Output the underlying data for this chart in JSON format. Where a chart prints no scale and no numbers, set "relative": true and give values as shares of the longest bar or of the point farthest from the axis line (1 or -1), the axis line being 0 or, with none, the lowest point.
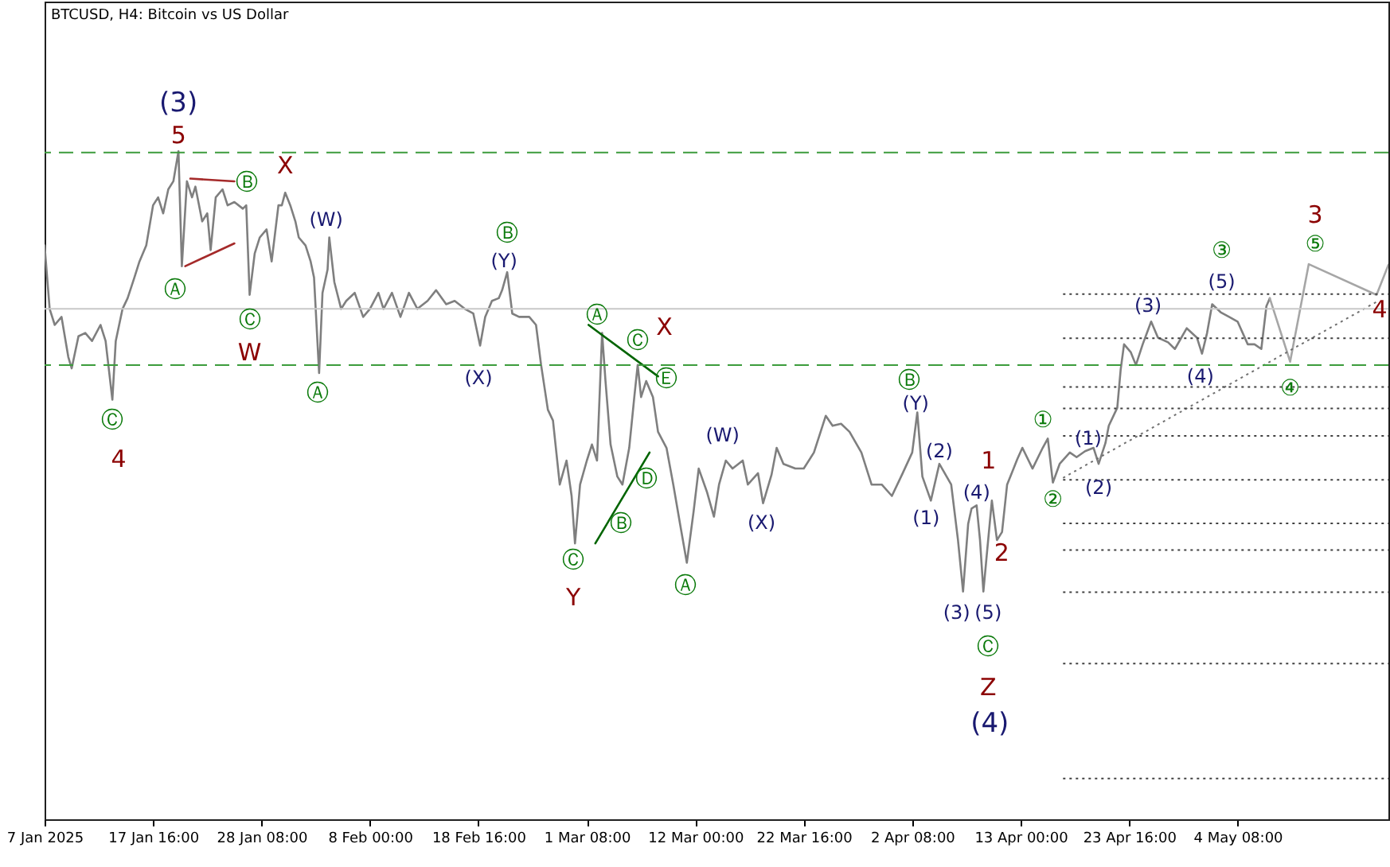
{
  "chart_data": {
    "type": "line",
    "title": "BTCUSD, H4: Bitcoin vs US Dollar",
    "relative": true,
    "xlim": [
      "2025-01-07T00:00",
      "2025-05-19T04:00"
    ],
    "xticks": [
      {
        "value": "2025-01-07T00:00",
        "label": "7 Jan 2025"
      },
      {
        "value": "2025-01-17T16:00",
        "label": "17 Jan 16:00"
      },
      {
        "value": "2025-01-28T08:00",
        "label": "28 Jan 08:00"
      },
      {
        "value": "2025-02-08T00:00",
        "label": "8 Feb 00:00"
      },
      {
        "value": "2025-02-18T16:00",
        "label": "18 Feb 16:00"
      },
      {
        "value": "2025-03-01T08:00",
        "label": "1 Mar 08:00"
      },
      {
        "value": "2025-03-12T00:00",
        "label": "12 Mar 00:00"
      },
      {
        "value": "2025-03-22T16:00",
        "label": "22 Mar 16:00"
      },
      {
        "value": "2025-04-02T08:00",
        "label": "2 Apr 08:00"
      },
      {
        "value": "2025-04-13T00:00",
        "label": "13 Apr 00:00"
      },
      {
        "value": "2025-04-23T16:00",
        "label": "23 Apr 16:00"
      },
      {
        "value": "2025-05-04T08:00",
        "label": "4 May 08:00"
      }
    ],
    "x": [
      "2025-01-07T00:00",
      "2025-01-07T12:00",
      "2025-01-08T00:00",
      "2025-01-08T16:00",
      "2025-01-09T08:00",
      "2025-01-09T16:00",
      "2025-01-10T08:00",
      "2025-01-11T00:00",
      "2025-01-11T16:00",
      "2025-01-12T12:00",
      "2025-01-13T00:00",
      "2025-01-13T16:00",
      "2025-01-14T00:00",
      "2025-01-14T16:00",
      "2025-01-15T04:00",
      "2025-01-15T20:00",
      "2025-01-16T08:00",
      "2025-01-17T00:00",
      "2025-01-17T16:00",
      "2025-01-18T04:00",
      "2025-01-18T16:00",
      "2025-01-19T04:00",
      "2025-01-19T16:00",
      "2025-01-20T04:00",
      "2025-01-20T12:00",
      "2025-01-21T00:00",
      "2025-01-21T12:00",
      "2025-01-21T20:00",
      "2025-01-22T12:00",
      "2025-01-23T00:00",
      "2025-01-23T08:00",
      "2025-01-23T20:00",
      "2025-01-24T12:00",
      "2025-01-25T00:00",
      "2025-01-25T16:00",
      "2025-01-26T12:00",
      "2025-01-26T20:00",
      "2025-01-27T04:00",
      "2025-01-27T16:00",
      "2025-01-28T04:00",
      "2025-01-28T20:00",
      "2025-01-29T08:00",
      "2025-01-30T00:00",
      "2025-01-30T08:00",
      "2025-01-30T16:00",
      "2025-01-31T04:00",
      "2025-01-31T16:00",
      "2025-02-01T00:00",
      "2025-02-01T16:00",
      "2025-02-02T04:00",
      "2025-02-02T12:00",
      "2025-02-03T00:00",
      "2025-02-03T08:00",
      "2025-02-03T20:00",
      "2025-02-04T00:00",
      "2025-02-04T12:00",
      "2025-02-05T04:00",
      "2025-02-05T16:00",
      "2025-02-06T12:00",
      "2025-02-07T08:00",
      "2025-02-08T00:00",
      "2025-02-08T20:00",
      "2025-02-09T08:00",
      "2025-02-10T04:00",
      "2025-02-11T00:00",
      "2025-02-11T20:00",
      "2025-02-12T16:00",
      "2025-02-13T16:00",
      "2025-02-14T12:00",
      "2025-02-15T12:00",
      "2025-02-16T08:00",
      "2025-02-17T08:00",
      "2025-02-18T04:00",
      "2025-02-18T20:00",
      "2025-02-19T08:00",
      "2025-02-20T00:00",
      "2025-02-20T16:00",
      "2025-02-21T00:00",
      "2025-02-21T12:00",
      "2025-02-22T00:00",
      "2025-02-22T16:00",
      "2025-02-23T16:00",
      "2025-02-24T08:00",
      "2025-02-24T20:00",
      "2025-02-25T12:00",
      "2025-02-26T00:00",
      "2025-02-26T16:00",
      "2025-02-27T08:00",
      "2025-02-27T20:00",
      "2025-02-28T04:00",
      "2025-02-28T16:00",
      "2025-03-01T08:00",
      "2025-03-01T20:00",
      "2025-03-02T08:00",
      "2025-03-02T20:00",
      "2025-03-03T04:00",
      "2025-03-03T16:00",
      "2025-03-04T08:00",
      "2025-03-04T20:00",
      "2025-03-05T12:00",
      "2025-03-06T00:00",
      "2025-03-06T08:00",
      "2025-03-06T16:00",
      "2025-03-07T04:00",
      "2025-03-07T20:00",
      "2025-03-08T08:00",
      "2025-03-09T04:00",
      "2025-03-09T20:00",
      "2025-03-10T12:00",
      "2025-03-11T04:00",
      "2025-03-11T20:00",
      "2025-03-12T08:00",
      "2025-03-13T04:00",
      "2025-03-13T20:00",
      "2025-03-14T08:00",
      "2025-03-15T00:00",
      "2025-03-15T16:00",
      "2025-03-16T16:00",
      "2025-03-17T04:00",
      "2025-03-18T04:00",
      "2025-03-18T16:00",
      "2025-03-19T12:00",
      "2025-03-20T00:00",
      "2025-03-20T16:00",
      "2025-03-21T20:00",
      "2025-03-22T16:00",
      "2025-03-23T16:00",
      "2025-03-24T20:00",
      "2025-03-25T12:00",
      "2025-03-26T08:00",
      "2025-03-27T04:00",
      "2025-03-28T08:00",
      "2025-03-29T08:00",
      "2025-03-30T08:00",
      "2025-03-31T08:00",
      "2025-04-01T08:00",
      "2025-04-02T08:00",
      "2025-04-02T20:00",
      "2025-04-03T08:00",
      "2025-04-04T04:00",
      "2025-04-05T00:00",
      "2025-04-06T04:00",
      "2025-04-06T20:00",
      "2025-04-07T08:00",
      "2025-04-07T20:00",
      "2025-04-08T04:00",
      "2025-04-08T16:00",
      "2025-04-09T00:00",
      "2025-04-09T08:00",
      "2025-04-09T16:00",
      "2025-04-10T04:00",
      "2025-04-10T16:00",
      "2025-04-11T04:00",
      "2025-04-11T16:00",
      "2025-04-12T16:00",
      "2025-04-13T04:00",
      "2025-04-14T04:00",
      "2025-04-15T04:00",
      "2025-04-15T16:00",
      "2025-04-16T04:00",
      "2025-04-16T20:00",
      "2025-04-17T20:00",
      "2025-04-18T12:00",
      "2025-04-19T08:00",
      "2025-04-20T04:00",
      "2025-04-20T16:00",
      "2025-04-21T08:00",
      "2025-04-21T16:00",
      "2025-04-22T12:00",
      "2025-04-22T20:00",
      "2025-04-23T04:00",
      "2025-04-23T20:00",
      "2025-04-24T08:00",
      "2025-04-25T00:00",
      "2025-04-25T20:00",
      "2025-04-26T12:00",
      "2025-04-27T12:00",
      "2025-04-28T04:00",
      "2025-04-29T08:00",
      "2025-04-30T08:00",
      "2025-04-30T20:00",
      "2025-05-01T08:00",
      "2025-05-01T20:00",
      "2025-05-02T16:00",
      "2025-05-03T12:00",
      "2025-05-04T08:00",
      "2025-05-05T08:00",
      "2025-05-06T00:00",
      "2025-05-06T16:00",
      "2025-05-07T04:00",
      "2025-05-07T12:00"
    ],
    "series": [
      {
        "color": "#7f7f7f",
        "values": [
          0.859,
          0.764,
          0.74,
          0.752,
          0.692,
          0.675,
          0.723,
          0.728,
          0.716,
          0.74,
          0.716,
          0.628,
          0.716,
          0.764,
          0.78,
          0.811,
          0.835,
          0.859,
          0.919,
          0.931,
          0.907,
          0.943,
          0.955,
          1.0,
          0.828,
          0.955,
          0.931,
          0.947,
          0.895,
          0.907,
          0.852,
          0.931,
          0.943,
          0.919,
          0.924,
          0.914,
          0.919,
          0.785,
          0.847,
          0.871,
          0.883,
          0.835,
          0.919,
          0.919,
          0.938,
          0.919,
          0.895,
          0.871,
          0.859,
          0.835,
          0.811,
          0.668,
          0.788,
          0.823,
          0.871,
          0.804,
          0.764,
          0.776,
          0.788,
          0.752,
          0.764,
          0.788,
          0.764,
          0.788,
          0.752,
          0.788,
          0.764,
          0.776,
          0.792,
          0.771,
          0.776,
          0.764,
          0.757,
          0.709,
          0.752,
          0.776,
          0.78,
          0.792,
          0.819,
          0.757,
          0.752,
          0.752,
          0.74,
          0.68,
          0.613,
          0.597,
          0.501,
          0.537,
          0.484,
          0.413,
          0.501,
          0.537,
          0.561,
          0.537,
          0.728,
          0.656,
          0.561,
          0.513,
          0.501,
          0.556,
          0.632,
          0.68,
          0.632,
          0.656,
          0.632,
          0.58,
          0.556,
          0.501,
          0.442,
          0.384,
          0.461,
          0.525,
          0.489,
          0.453,
          0.501,
          0.537,
          0.525,
          0.537,
          0.501,
          0.518,
          0.473,
          0.516,
          0.556,
          0.532,
          0.525,
          0.525,
          0.549,
          0.604,
          0.589,
          0.592,
          0.58,
          0.549,
          0.501,
          0.501,
          0.484,
          0.516,
          0.549,
          0.609,
          0.513,
          0.477,
          0.532,
          0.501,
          0.418,
          0.341,
          0.442,
          0.465,
          0.47,
          0.418,
          0.341,
          0.396,
          0.477,
          0.418,
          0.43,
          0.501,
          0.539,
          0.556,
          0.525,
          0.556,
          0.57,
          0.504,
          0.532,
          0.549,
          0.542,
          0.551,
          0.556,
          0.532,
          0.563,
          0.589,
          0.616,
          0.673,
          0.711,
          0.699,
          0.68,
          0.711,
          0.745,
          0.721,
          0.714,
          0.704,
          0.735,
          0.721,
          0.697,
          0.728,
          0.771,
          0.759,
          0.752,
          0.745,
          0.711,
          0.711,
          0.704,
          0.768,
          0.78
        ]
      },
      {
        "color": "#a6a6a6",
        "x": [
          "2025-05-07T12:00",
          "2025-05-09T12:00",
          "2025-05-11T08:00",
          "2025-05-18T00:00",
          "2025-05-19T04:00"
        ],
        "values": [
          0.78,
          0.685,
          0.831,
          0.785,
          0.83
        ]
      },
      {
        "color": "#a52a2a",
        "x": [
          "2025-01-21T08:00",
          "2025-01-25T16:00"
        ],
        "values": [
          0.959,
          0.955
        ]
      },
      {
        "color": "#a52a2a",
        "x": [
          "2025-01-20T20:00",
          "2025-01-25T16:00"
        ],
        "values": [
          0.828,
          0.862
        ]
      },
      {
        "color": "#006400",
        "x": [
          "2025-03-01T12:00",
          "2025-03-08T08:00"
        ],
        "values": [
          0.74,
          0.663
        ]
      },
      {
        "color": "#006400",
        "x": [
          "2025-03-02T04:00",
          "2025-03-07T12:00"
        ],
        "values": [
          0.413,
          0.549
        ]
      },
      {
        "color": "#707070",
        "line_style": "dotted",
        "x": [
          "2025-04-17T04:00",
          "2025-05-18T04:00"
        ],
        "values": [
          0.511,
          0.776
        ]
      },
      {
        "color": "#404040",
        "line_style": "dotted",
        "x": [
          "2025-04-17T04:00",
          "2025-05-19T04:00"
        ],
        "values": [
          0.786,
          0.786
        ]
      },
      {
        "color": "#404040",
        "line_style": "dotted",
        "x": [
          "2025-04-17T04:00",
          "2025-05-19T04:00"
        ],
        "values": [
          0.72,
          0.72
        ]
      },
      {
        "color": "#404040",
        "line_style": "dotted",
        "x": [
          "2025-04-17T04:00",
          "2025-05-19T04:00"
        ],
        "values": [
          0.647,
          0.647
        ]
      },
      {
        "color": "#404040",
        "line_style": "dotted",
        "x": [
          "2025-04-17T04:00",
          "2025-05-19T04:00"
        ],
        "values": [
          0.615,
          0.615
        ]
      },
      {
        "color": "#404040",
        "line_style": "dotted",
        "x": [
          "2025-04-17T04:00",
          "2025-05-19T04:00"
        ],
        "values": [
          0.574,
          0.574
        ]
      },
      {
        "color": "#404040",
        "line_style": "dotted",
        "x": [
          "2025-04-17T04:00",
          "2025-05-19T04:00"
        ],
        "values": [
          0.508,
          0.508
        ]
      },
      {
        "color": "#404040",
        "line_style": "dotted",
        "x": [
          "2025-04-17T04:00",
          "2025-05-19T04:00"
        ],
        "values": [
          0.443,
          0.443
        ]
      },
      {
        "color": "#404040",
        "line_style": "dotted",
        "x": [
          "2025-04-17T04:00",
          "2025-05-19T04:00"
        ],
        "values": [
          0.403,
          0.403
        ]
      },
      {
        "color": "#404040",
        "line_style": "dotted",
        "x": [
          "2025-04-17T04:00",
          "2025-05-19T04:00"
        ],
        "values": [
          0.34,
          0.34
        ]
      },
      {
        "color": "#404040",
        "line_style": "dotted",
        "x": [
          "2025-04-17T04:00",
          "2025-05-19T04:00"
        ],
        "values": [
          0.233,
          0.233
        ]
      },
      {
        "color": "#404040",
        "line_style": "dotted",
        "x": [
          "2025-04-17T04:00",
          "2025-05-19T04:00"
        ],
        "values": [
          0.061,
          0.061
        ]
      }
    ],
    "ref_lines": [
      {
        "axis": "y",
        "value": 0.998,
        "color": "#3c9c3c",
        "line_style": "dashed"
      },
      {
        "axis": "y",
        "value": 0.68,
        "color": "#3c9c3c",
        "line_style": "dashed"
      },
      {
        "axis": "y",
        "value": 0.764,
        "color": "#c8c8c8",
        "line_style": "solid"
      }
    ],
    "annotations": [
      {
        "text": "(3)",
        "x": "2025-01-20T04:00",
        "y": 1.0
      },
      {
        "text": "5",
        "x": "2025-01-20T04:00",
        "y": 1.0
      },
      {
        "text": "Ⓑ",
        "x": "2025-01-25T16:00",
        "y": 0.955
      },
      {
        "text": "X",
        "x": "2025-01-30T16:00",
        "y": 0.938
      },
      {
        "text": "(W)",
        "x": "2025-02-04T00:00",
        "y": 0.871
      },
      {
        "text": "Ⓐ",
        "x": "2025-01-20T12:00",
        "y": 0.828
      },
      {
        "text": "Ⓒ",
        "x": "2025-01-27T04:00",
        "y": 0.785
      },
      {
        "text": "W",
        "x": "2025-01-27T04:00",
        "y": 0.785
      },
      {
        "text": "Ⓐ",
        "x": "2025-02-03T00:00",
        "y": 0.668
      },
      {
        "text": "Ⓒ",
        "x": "2025-01-13T16:00",
        "y": 0.628
      },
      {
        "text": "4",
        "x": "2025-01-13T16:00",
        "y": 0.628
      },
      {
        "text": "Ⓑ",
        "x": "2025-02-21T12:00",
        "y": 0.819
      },
      {
        "text": "(Y)",
        "x": "2025-02-21T12:00",
        "y": 0.819
      },
      {
        "text": "(X)",
        "x": "2025-02-18T20:00",
        "y": 0.709
      },
      {
        "text": "Ⓐ",
        "x": "2025-03-02T20:00",
        "y": 0.728
      },
      {
        "text": "X",
        "x": "2025-03-08T08:00",
        "y": 0.663
      },
      {
        "text": "Ⓒ",
        "x": "2025-03-06T08:00",
        "y": 0.68
      },
      {
        "text": "Ⓔ",
        "x": "2025-03-08T08:00",
        "y": 0.663
      },
      {
        "text": "Ⓓ",
        "x": "2025-03-07T12:00",
        "y": 0.549
      },
      {
        "text": "Ⓑ",
        "x": "2025-03-04T20:00",
        "y": 0.501
      },
      {
        "text": "Ⓒ",
        "x": "2025-02-28T04:00",
        "y": 0.413
      },
      {
        "text": "Y",
        "x": "2025-02-28T04:00",
        "y": 0.413
      },
      {
        "text": "Ⓐ",
        "x": "2025-03-11T04:00",
        "y": 0.384
      },
      {
        "text": "(W)",
        "x": "2025-03-15T00:00",
        "y": 0.537
      },
      {
        "text": "(X)",
        "x": "2025-03-18T16:00",
        "y": 0.473
      },
      {
        "text": "Ⓑ",
        "x": "2025-04-02T20:00",
        "y": 0.609
      },
      {
        "text": "(Y)",
        "x": "2025-04-02T20:00",
        "y": 0.609
      },
      {
        "text": "(2)",
        "x": "2025-04-05T00:00",
        "y": 0.532
      },
      {
        "text": "(1)",
        "x": "2025-04-04T04:00",
        "y": 0.477
      },
      {
        "text": "(4)",
        "x": "2025-04-08T16:00",
        "y": 0.47
      },
      {
        "text": "1",
        "x": "2025-04-10T04:00",
        "y": 0.477
      },
      {
        "text": "2",
        "x": "2025-04-10T16:00",
        "y": 0.418
      },
      {
        "text": "(3)",
        "x": "2025-04-07T08:00",
        "y": 0.341
      },
      {
        "text": "(5)",
        "x": "2025-04-09T08:00",
        "y": 0.341
      },
      {
        "text": "Ⓒ",
        "x": "2025-04-09T08:00",
        "y": 0.341
      },
      "Z",
      "(4)",
      {
        "text": "①",
        "x": "2025-04-15T16:00",
        "y": 0.57
      },
      {
        "text": "②",
        "x": "2025-04-16T04:00",
        "y": 0.504
      },
      {
        "text": "(1)",
        "x": "2025-04-19T08:00",
        "y": 0.551
      },
      {
        "text": "(2)",
        "x": "2025-04-20T16:00",
        "y": 0.532
      },
      {
        "text": "(3)",
        "x": "2025-04-25T20:00",
        "y": 0.745
      },
      {
        "text": "(5)",
        "x": "2025-05-01T20:00",
        "y": 0.771
      },
      {
        "text": "③",
        "x": "2025-05-01T20:00",
        "y": 0.771
      },
      {
        "text": "(4)",
        "x": "2025-04-30T20:00",
        "y": 0.697
      },
      {
        "text": "④",
        "x": "2025-05-09T12:00",
        "y": 0.685
      },
      {
        "text": "⑤",
        "x": "2025-05-11T08:00",
        "y": 0.831
      },
      {
        "text": "3",
        "x": "2025-05-11T08:00",
        "y": 0.831
      },
      {
        "text": "4",
        "x": "2025-05-18T00:00",
        "y": 0.785
      }
    ]
  }
}
